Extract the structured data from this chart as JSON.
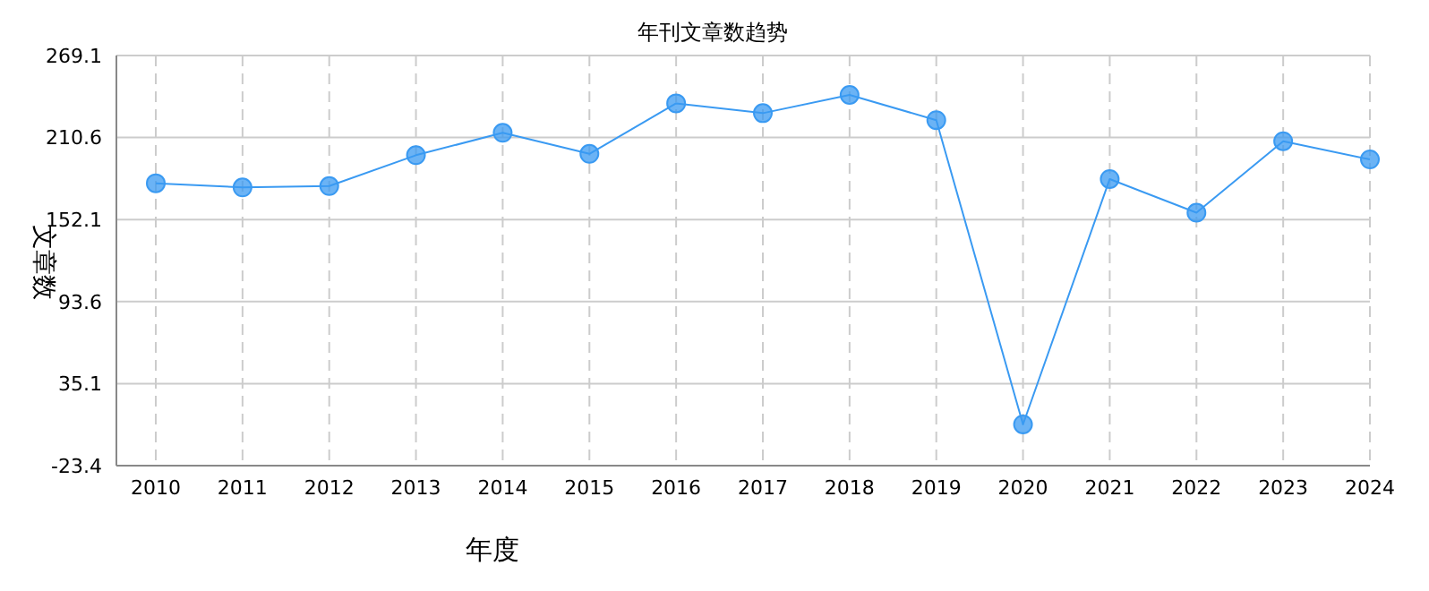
{
  "chart_data": {
    "type": "line",
    "title": "年刊文章数趋势",
    "xlabel": "年度",
    "ylabel": "文章数",
    "categories": [
      "2010",
      "2011",
      "2012",
      "2013",
      "2014",
      "2015",
      "2016",
      "2017",
      "2018",
      "2019",
      "2020",
      "2021",
      "2022",
      "2023",
      "2024"
    ],
    "series": [
      {
        "color": "#3a9af2",
        "values": [
          178,
          175,
          176,
          198,
          214,
          199,
          235,
          228,
          241,
          223,
          6,
          181,
          157,
          208,
          195
        ]
      }
    ],
    "ylim": [
      -23.4,
      269.1
    ],
    "yticks": [
      -23.4,
      35.1,
      93.6,
      152.1,
      210.6,
      269.1
    ],
    "grid": true,
    "marker": "circle",
    "line_style": "solid",
    "legend": false
  }
}
